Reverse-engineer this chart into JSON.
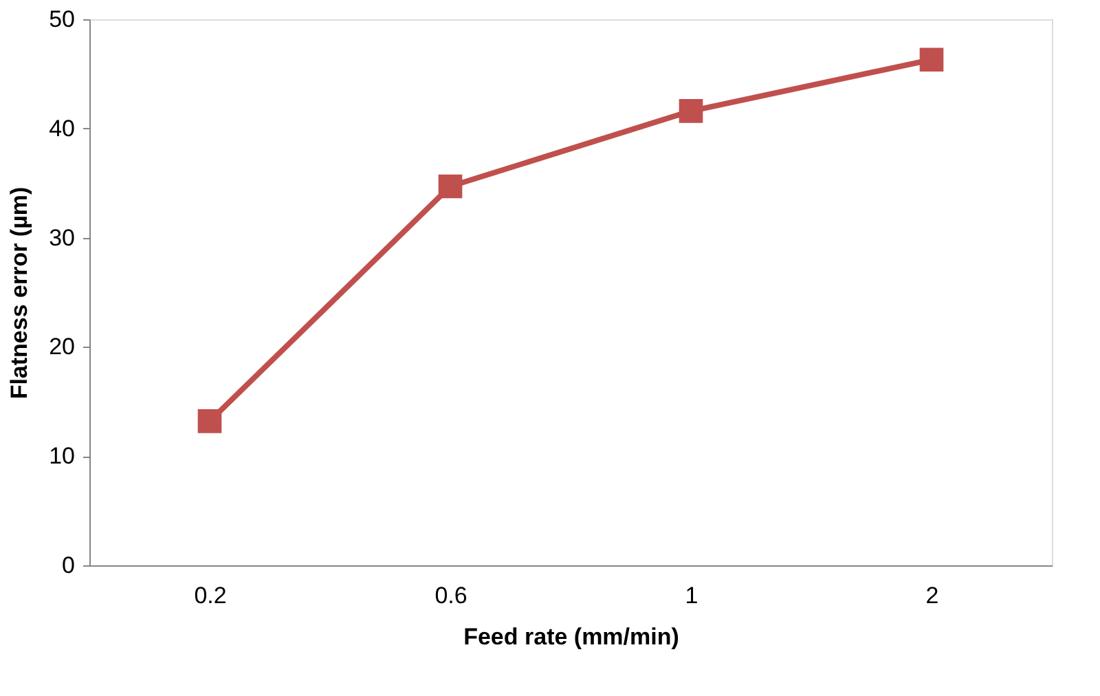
{
  "chart_data": {
    "type": "line",
    "xlabel": "Feed rate (mm/min)",
    "ylabel": "Flatness error (µm)",
    "categories": [
      "0.2",
      "0.6",
      "1",
      "2"
    ],
    "series": [
      {
        "color": "#c0504d",
        "values": [
          13.2,
          34.7,
          41.6,
          46.3
        ]
      }
    ],
    "ylim": [
      0,
      50
    ],
    "yticks": [
      0,
      10,
      20,
      30,
      40,
      50
    ],
    "grid": false,
    "marker": "square",
    "line_style": "solid"
  }
}
